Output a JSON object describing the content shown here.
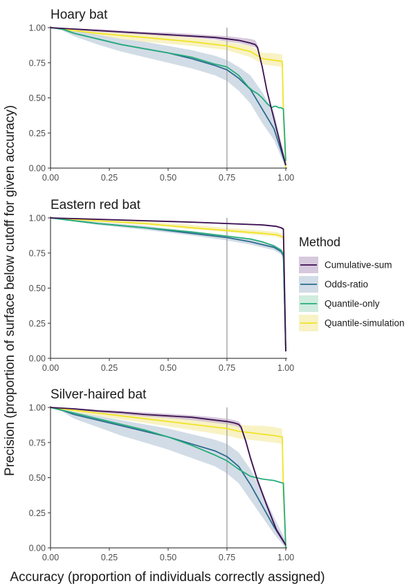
{
  "figure": {
    "ylabel": "Precision (proportion of surface below cutoff for given accuracy)",
    "xlabel": "Accuracy (proportion of individuals correctly assigned)",
    "legend_title": "Method"
  },
  "chart_data": {
    "type": "line",
    "legend_position": "right",
    "grid": false,
    "xlim": [
      0,
      1
    ],
    "ylim": [
      0,
      1
    ],
    "x_ticks": [
      "0.00",
      "0.25",
      "0.50",
      "0.75",
      "1.00"
    ],
    "y_ticks": [
      "0.00",
      "0.25",
      "0.50",
      "0.75",
      "1.00"
    ],
    "vline_x": 0.75,
    "legend": [
      {
        "name": "Cumulative-sum",
        "color": "#3b0f4f",
        "band": "#c9b7d1"
      },
      {
        "name": "Odds-ratio",
        "color": "#2c6a8e",
        "band": "#c3d0dd"
      },
      {
        "name": "Quantile-only",
        "color": "#25ad7a",
        "band": "#bfe6d4"
      },
      {
        "name": "Quantile-simulation",
        "color": "#f0e326",
        "band": "#f6eeb0"
      }
    ],
    "panels": [
      {
        "title": "Hoary bat",
        "series": [
          {
            "name": "Quantile-simulation",
            "x": [
              0,
              0.1,
              0.2,
              0.4,
              0.6,
              0.75,
              0.85,
              0.88,
              0.9,
              0.94,
              0.985,
              0.99,
              1.0
            ],
            "y": [
              1.0,
              0.98,
              0.96,
              0.93,
              0.9,
              0.87,
              0.83,
              0.8,
              0.78,
              0.77,
              0.76,
              0.4,
              0.0
            ],
            "lo": [
              1.0,
              0.97,
              0.94,
              0.9,
              0.87,
              0.84,
              0.79,
              0.76,
              0.74,
              0.73,
              0.72,
              0.35,
              0.0
            ],
            "hi": [
              1.0,
              0.99,
              0.98,
              0.96,
              0.93,
              0.9,
              0.87,
              0.84,
              0.82,
              0.82,
              0.81,
              0.5,
              0.0
            ]
          },
          {
            "name": "Odds-ratio",
            "x": [
              0,
              0.05,
              0.1,
              0.2,
              0.3,
              0.4,
              0.5,
              0.6,
              0.7,
              0.75,
              0.8,
              0.85,
              0.9,
              0.95,
              1.0
            ],
            "y": [
              1.0,
              0.99,
              0.96,
              0.92,
              0.88,
              0.85,
              0.82,
              0.78,
              0.73,
              0.7,
              0.64,
              0.56,
              0.42,
              0.28,
              0.02
            ],
            "lo": [
              1.0,
              0.98,
              0.94,
              0.88,
              0.83,
              0.79,
              0.75,
              0.71,
              0.66,
              0.62,
              0.55,
              0.46,
              0.32,
              0.2,
              0.0
            ],
            "hi": [
              1.0,
              1.0,
              0.98,
              0.95,
              0.92,
              0.9,
              0.87,
              0.84,
              0.8,
              0.77,
              0.72,
              0.66,
              0.54,
              0.4,
              0.05
            ]
          },
          {
            "name": "Quantile-only",
            "x": [
              0,
              0.05,
              0.1,
              0.2,
              0.3,
              0.4,
              0.5,
              0.6,
              0.7,
              0.75,
              0.8,
              0.82,
              0.84,
              0.86,
              0.88,
              0.9,
              0.92,
              0.94,
              0.95,
              0.96,
              0.97,
              0.98,
              0.99,
              1.0
            ],
            "y": [
              1.0,
              0.99,
              0.96,
              0.92,
              0.88,
              0.85,
              0.82,
              0.79,
              0.74,
              0.72,
              0.66,
              0.62,
              0.58,
              0.55,
              0.53,
              0.5,
              0.46,
              0.43,
              0.44,
              0.44,
              0.43,
              0.43,
              0.42,
              0.05
            ]
          },
          {
            "name": "Cumulative-sum",
            "x": [
              0,
              0.1,
              0.2,
              0.3,
              0.4,
              0.5,
              0.6,
              0.7,
              0.75,
              0.8,
              0.85,
              0.87,
              0.88,
              0.9,
              0.92,
              0.95,
              0.98,
              1.0
            ],
            "y": [
              1.0,
              0.99,
              0.98,
              0.97,
              0.96,
              0.95,
              0.94,
              0.93,
              0.92,
              0.91,
              0.89,
              0.88,
              0.86,
              0.72,
              0.55,
              0.35,
              0.15,
              0.02
            ],
            "lo": [
              1.0,
              0.985,
              0.97,
              0.96,
              0.95,
              0.94,
              0.93,
              0.915,
              0.9,
              0.89,
              0.87,
              0.86,
              0.84,
              0.7,
              0.53,
              0.33,
              0.13,
              0.0
            ],
            "hi": [
              1.0,
              0.995,
              0.99,
              0.98,
              0.97,
              0.965,
              0.955,
              0.945,
              0.94,
              0.93,
              0.92,
              0.91,
              0.88,
              0.74,
              0.57,
              0.37,
              0.17,
              0.04
            ]
          }
        ]
      },
      {
        "title": "Eastern red bat",
        "series": [
          {
            "name": "Quantile-simulation",
            "x": [
              0,
              0.1,
              0.2,
              0.4,
              0.6,
              0.75,
              0.9,
              0.96,
              0.98,
              0.99,
              1.0
            ],
            "y": [
              1.0,
              0.99,
              0.98,
              0.96,
              0.93,
              0.91,
              0.89,
              0.88,
              0.87,
              0.86,
              0.05
            ],
            "lo": [
              1.0,
              0.985,
              0.97,
              0.95,
              0.92,
              0.9,
              0.875,
              0.865,
              0.855,
              0.84,
              0.0
            ],
            "hi": [
              1.0,
              0.995,
              0.99,
              0.975,
              0.95,
              0.93,
              0.91,
              0.9,
              0.89,
              0.88,
              0.1
            ]
          },
          {
            "name": "Odds-ratio",
            "x": [
              0,
              0.1,
              0.2,
              0.4,
              0.6,
              0.75,
              0.85,
              0.9,
              0.95,
              0.98,
              0.99,
              1.0
            ],
            "y": [
              1.0,
              0.98,
              0.96,
              0.93,
              0.89,
              0.86,
              0.83,
              0.81,
              0.79,
              0.76,
              0.73,
              0.05
            ],
            "lo": [
              1.0,
              0.975,
              0.95,
              0.915,
              0.875,
              0.84,
              0.81,
              0.79,
              0.77,
              0.74,
              0.7,
              0.0
            ],
            "hi": [
              1.0,
              0.99,
              0.97,
              0.945,
              0.905,
              0.875,
              0.85,
              0.83,
              0.81,
              0.78,
              0.76,
              0.1
            ]
          },
          {
            "name": "Quantile-only",
            "x": [
              0,
              0.1,
              0.2,
              0.4,
              0.6,
              0.75,
              0.85,
              0.9,
              0.95,
              0.98,
              0.99,
              1.0
            ],
            "y": [
              1.0,
              0.98,
              0.96,
              0.93,
              0.9,
              0.87,
              0.85,
              0.83,
              0.8,
              0.77,
              0.74,
              0.05
            ]
          },
          {
            "name": "Cumulative-sum",
            "x": [
              0,
              0.1,
              0.2,
              0.4,
              0.6,
              0.75,
              0.9,
              0.96,
              0.98,
              0.99,
              1.0
            ],
            "y": [
              1.0,
              0.995,
              0.99,
              0.98,
              0.97,
              0.96,
              0.95,
              0.94,
              0.93,
              0.92,
              0.05
            ],
            "lo": [
              1.0,
              0.99,
              0.985,
              0.975,
              0.965,
              0.955,
              0.945,
              0.935,
              0.925,
              0.91,
              0.0
            ],
            "hi": [
              1.0,
              1.0,
              0.995,
              0.985,
              0.975,
              0.965,
              0.955,
              0.945,
              0.935,
              0.93,
              0.1
            ]
          }
        ]
      },
      {
        "title": "Silver-haired bat",
        "series": [
          {
            "name": "Quantile-simulation",
            "x": [
              0,
              0.1,
              0.2,
              0.4,
              0.6,
              0.75,
              0.8,
              0.85,
              0.9,
              0.95,
              0.985,
              0.99,
              1.0
            ],
            "y": [
              1.0,
              0.98,
              0.96,
              0.92,
              0.88,
              0.85,
              0.83,
              0.82,
              0.81,
              0.8,
              0.79,
              0.4,
              0.0
            ],
            "lo": [
              1.0,
              0.97,
              0.94,
              0.89,
              0.84,
              0.8,
              0.78,
              0.77,
              0.76,
              0.75,
              0.74,
              0.35,
              0.0
            ],
            "hi": [
              1.0,
              0.99,
              0.98,
              0.95,
              0.92,
              0.9,
              0.88,
              0.87,
              0.87,
              0.86,
              0.85,
              0.5,
              0.0
            ]
          },
          {
            "name": "Odds-ratio",
            "x": [
              0,
              0.05,
              0.1,
              0.2,
              0.3,
              0.4,
              0.5,
              0.6,
              0.7,
              0.75,
              0.8,
              0.85,
              0.9,
              0.95,
              1.0
            ],
            "y": [
              1.0,
              0.98,
              0.95,
              0.91,
              0.87,
              0.83,
              0.79,
              0.74,
              0.69,
              0.65,
              0.58,
              0.45,
              0.3,
              0.15,
              0.02
            ],
            "lo": [
              1.0,
              0.97,
              0.92,
              0.86,
              0.8,
              0.75,
              0.7,
              0.64,
              0.58,
              0.53,
              0.46,
              0.34,
              0.22,
              0.1,
              0.0
            ],
            "hi": [
              1.0,
              0.99,
              0.97,
              0.94,
              0.91,
              0.88,
              0.85,
              0.81,
              0.77,
              0.74,
              0.68,
              0.56,
              0.4,
              0.22,
              0.05
            ]
          },
          {
            "name": "Quantile-only",
            "x": [
              0,
              0.05,
              0.1,
              0.2,
              0.3,
              0.4,
              0.5,
              0.6,
              0.7,
              0.75,
              0.8,
              0.85,
              0.9,
              0.95,
              0.99,
              1.0
            ],
            "y": [
              1.0,
              0.98,
              0.96,
              0.92,
              0.88,
              0.84,
              0.79,
              0.73,
              0.66,
              0.62,
              0.56,
              0.51,
              0.49,
              0.48,
              0.46,
              0.0
            ]
          },
          {
            "name": "Cumulative-sum",
            "x": [
              0,
              0.1,
              0.2,
              0.3,
              0.4,
              0.5,
              0.6,
              0.7,
              0.75,
              0.78,
              0.8,
              0.81,
              0.83,
              0.85,
              0.88,
              0.92,
              0.96,
              1.0
            ],
            "y": [
              1.0,
              0.99,
              0.975,
              0.965,
              0.95,
              0.94,
              0.93,
              0.91,
              0.9,
              0.89,
              0.88,
              0.86,
              0.76,
              0.64,
              0.48,
              0.3,
              0.13,
              0.02
            ],
            "lo": [
              1.0,
              0.985,
              0.965,
              0.95,
              0.935,
              0.925,
              0.91,
              0.89,
              0.88,
              0.87,
              0.86,
              0.84,
              0.74,
              0.62,
              0.46,
              0.28,
              0.11,
              0.0
            ],
            "hi": [
              1.0,
              0.995,
              0.985,
              0.975,
              0.965,
              0.955,
              0.945,
              0.93,
              0.92,
              0.91,
              0.9,
              0.88,
              0.78,
              0.66,
              0.5,
              0.32,
              0.15,
              0.04
            ]
          }
        ]
      }
    ]
  }
}
